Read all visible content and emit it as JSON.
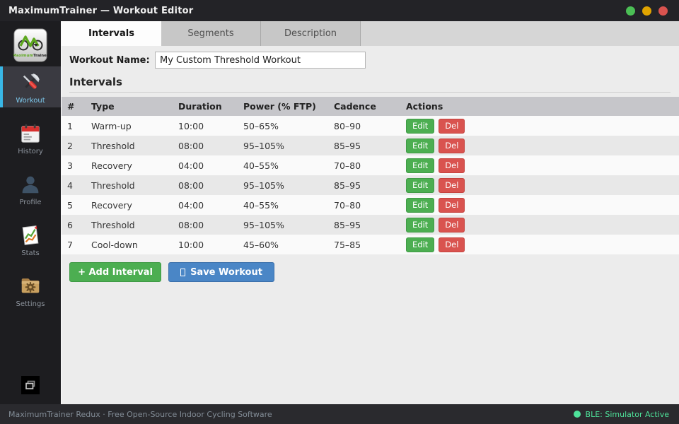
{
  "app": {
    "title": "MaximumTrainer — Workout Editor",
    "logo_text_primary": "Maximum",
    "logo_text_secondary": "Trainer"
  },
  "window_controls": [
    {
      "name": "green-dot",
      "color": "#4bbf55"
    },
    {
      "name": "amber-dot",
      "color": "#e0a400"
    },
    {
      "name": "red-dot",
      "color": "#d9534f"
    }
  ],
  "sidebar": {
    "items": [
      {
        "label": "Workout",
        "icon": "tools-icon",
        "active": true
      },
      {
        "label": "History",
        "icon": "calendar-icon",
        "active": false
      },
      {
        "label": "Profile",
        "icon": "person-icon",
        "active": false
      },
      {
        "label": "Stats",
        "icon": "chart-doc-icon",
        "active": false
      },
      {
        "label": "Settings",
        "icon": "gear-folder-icon",
        "active": false
      }
    ],
    "accent_color": "#39b7e6"
  },
  "tabs": [
    {
      "label": "Intervals",
      "active": true
    },
    {
      "label": "Segments",
      "active": false
    },
    {
      "label": "Description",
      "active": false
    }
  ],
  "form": {
    "workout_name_label": "Workout Name:",
    "workout_name_value": "My Custom Threshold Workout"
  },
  "section": {
    "heading": "Intervals"
  },
  "table": {
    "headers": [
      "#",
      "Type",
      "Duration",
      "Power (% FTP)",
      "Cadence",
      "Actions"
    ],
    "rows": [
      {
        "num": "1",
        "type": "Warm-up",
        "duration": "10:00",
        "power": "50–65%",
        "cadence": "80–90"
      },
      {
        "num": "2",
        "type": "Threshold",
        "duration": "08:00",
        "power": "95–105%",
        "cadence": "85–95"
      },
      {
        "num": "3",
        "type": "Recovery",
        "duration": "04:00",
        "power": "40–55%",
        "cadence": "70–80"
      },
      {
        "num": "4",
        "type": "Threshold",
        "duration": "08:00",
        "power": "95–105%",
        "cadence": "85–95"
      },
      {
        "num": "5",
        "type": "Recovery",
        "duration": "04:00",
        "power": "40–55%",
        "cadence": "70–80"
      },
      {
        "num": "6",
        "type": "Threshold",
        "duration": "08:00",
        "power": "95–105%",
        "cadence": "85–95"
      },
      {
        "num": "7",
        "type": "Cool-down",
        "duration": "10:00",
        "power": "45–60%",
        "cadence": "75–85"
      }
    ],
    "actions": {
      "edit": "Edit",
      "del": "Del"
    }
  },
  "buttons": {
    "add_interval": "+ Add Interval",
    "save_workout": "Save Workout",
    "save_icon": "glyph-box",
    "add_color": "#4cae51",
    "save_color": "#4a86c6"
  },
  "statusbar": {
    "left": "MaximumTrainer Redux · Free Open-Source Indoor Cycling Software",
    "right": "BLE: Simulator Active",
    "dot_color": "#4ee29a"
  }
}
